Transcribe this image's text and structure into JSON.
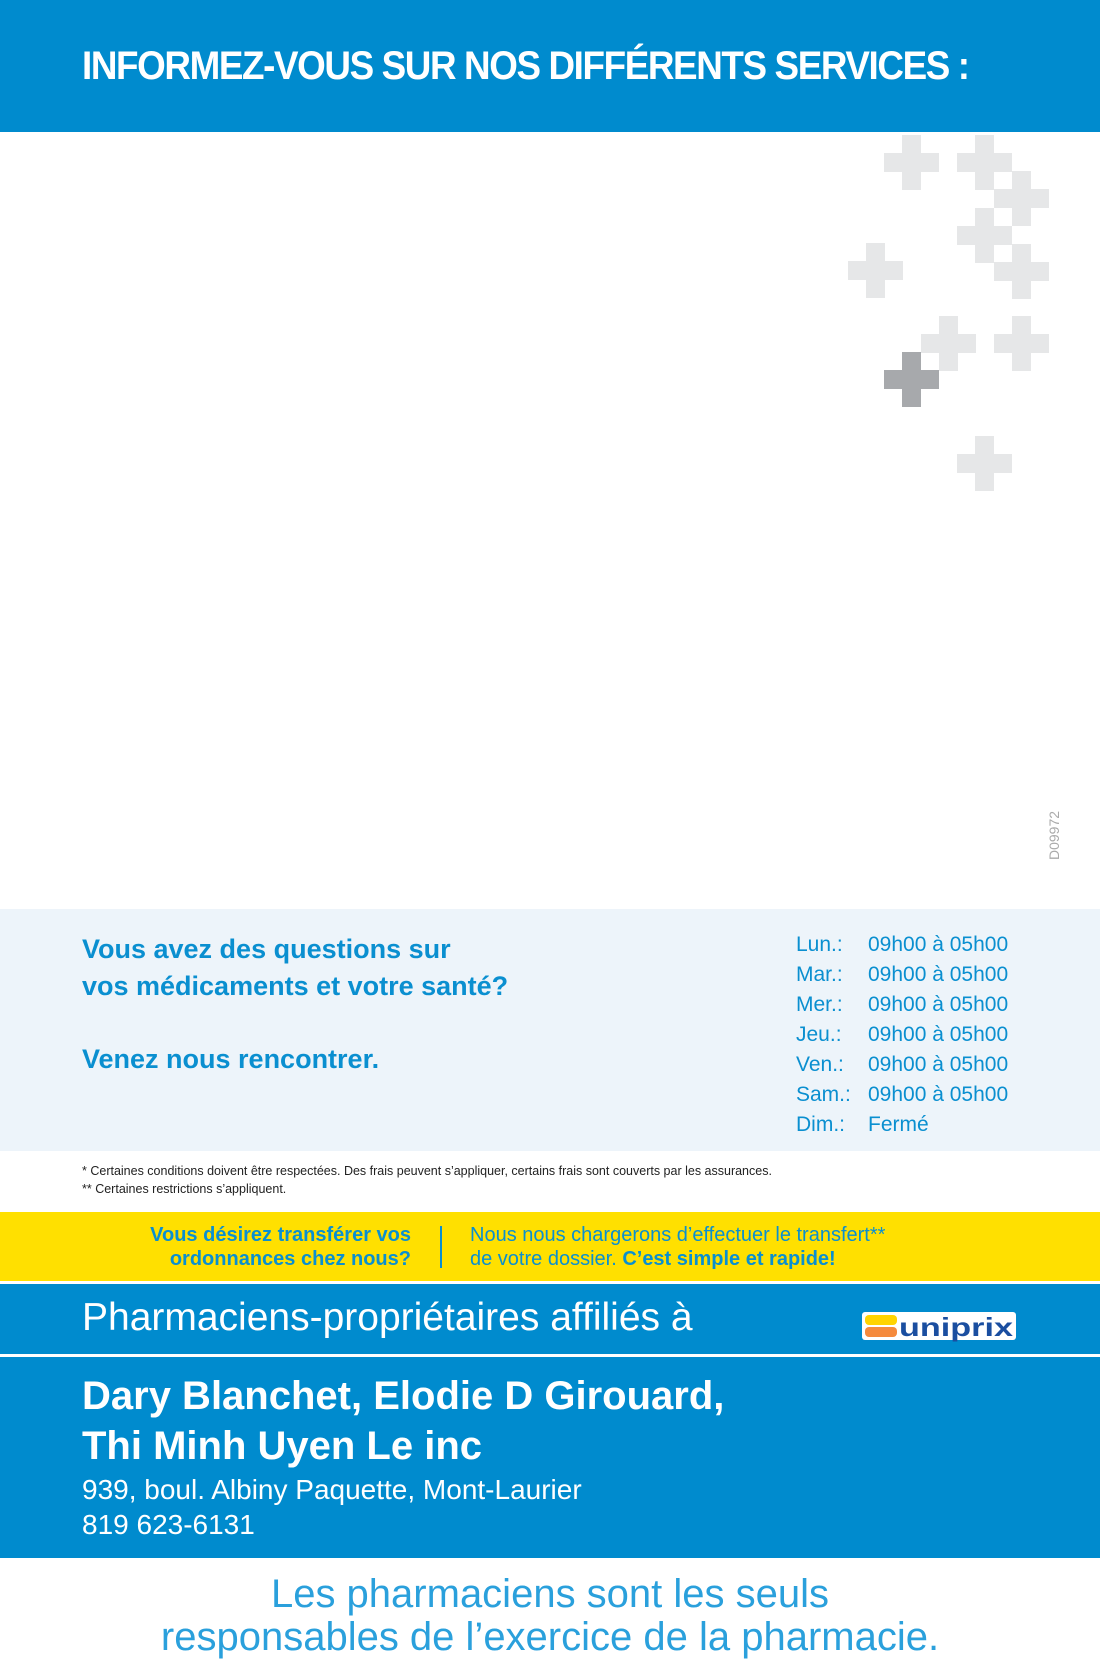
{
  "header": {
    "title": "INFORMEZ-VOUS SUR NOS DIFFÉRENTS SERVICES :"
  },
  "colors": {
    "brand_blue": "#008bce",
    "text_blue": "#0a8fd0",
    "yellow": "#ffe000",
    "panel": "#edf4fa",
    "cross_light": "#e6e7e8",
    "cross_dark": "#a7a9ac"
  },
  "code": "D09972",
  "questions": {
    "line1": "Vous avez des questions sur",
    "line2": "vos médicaments et votre santé?",
    "line3": "Venez nous rencontrer."
  },
  "hours": [
    {
      "day": "Lun.:",
      "time": "09h00 à 05h00"
    },
    {
      "day": "Mar.:",
      "time": "09h00 à 05h00"
    },
    {
      "day": "Mer.:",
      "time": "09h00 à 05h00"
    },
    {
      "day": "Jeu.:",
      "time": "09h00 à 05h00"
    },
    {
      "day": "Ven.:",
      "time": "09h00 à 05h00"
    },
    {
      "day": "Sam.:",
      "time": "09h00 à 05h00"
    },
    {
      "day": "Dim.:",
      "time": "Fermé"
    }
  ],
  "footnotes": [
    "* Certaines conditions doivent être respectées. Des frais peuvent s’appliquer, certains frais sont couverts par les assurances.",
    "** Certaines restrictions s’appliquent."
  ],
  "transfer": {
    "left1": "Vous désirez transférer vos",
    "left2": "ordonnances chez nous?",
    "right1": "Nous nous chargerons d’effectuer le transfert**",
    "right2a": "de votre dossier. ",
    "right2b": "C’est simple et rapide!"
  },
  "affiliation": {
    "text": "Pharmaciens-propriétaires affiliés à",
    "logo": "uniprix"
  },
  "pharmacy": {
    "names1": "Dary Blanchet, Elodie D Girouard,",
    "names2": "Thi Minh Uyen Le inc",
    "address": "939, boul. Albiny Paquette, Mont-Laurier",
    "phone": "819 623-6131"
  },
  "slogan": {
    "line1": "Les pharmaciens sont les seuls",
    "line2": "responsables de l’exercice de la pharmacie."
  }
}
